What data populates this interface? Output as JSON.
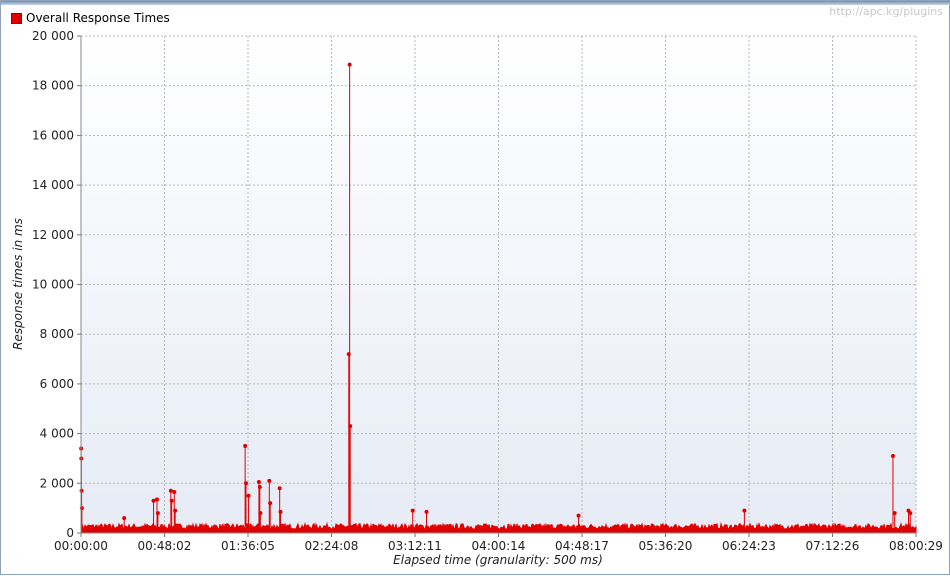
{
  "watermark": "http://apc.kg/plugins",
  "chart_data": {
    "type": "line",
    "legend": {
      "label": "Overall Response Times",
      "position": "top-left",
      "color": "#e00000"
    },
    "xlabel": "Elapsed time (granularity: 500 ms)",
    "ylabel": "Response times in ms",
    "ylim": [
      0,
      20000
    ],
    "yticks": [
      0,
      2000,
      4000,
      6000,
      8000,
      10000,
      12000,
      14000,
      16000,
      18000,
      20000
    ],
    "ytick_labels": [
      "0",
      "2 000",
      "4 000",
      "6 000",
      "8 000",
      "10 000",
      "12 000",
      "14 000",
      "16 000",
      "18 000",
      "20 000"
    ],
    "xlim_seconds": [
      0,
      29000
    ],
    "xtick_labels": [
      "00:00:00",
      "00:48:02",
      "01:36:05",
      "02:24:08",
      "03:12:11",
      "04:00:14",
      "04:48:17",
      "05:36:20",
      "06:24:23",
      "07:12:26",
      "08:00:29"
    ],
    "grid": true,
    "baseline_ms": 250,
    "series": [
      {
        "name": "Overall Response Times",
        "color": "#e00000",
        "spikes": [
          {
            "t": "00:00:05",
            "value": 3400
          },
          {
            "t": "00:00:10",
            "value": 3000
          },
          {
            "t": "00:00:20",
            "value": 1700
          },
          {
            "t": "00:00:30",
            "value": 1000
          },
          {
            "t": "00:25:00",
            "value": 600
          },
          {
            "t": "00:42:00",
            "value": 1300
          },
          {
            "t": "00:44:00",
            "value": 1350
          },
          {
            "t": "00:44:30",
            "value": 800
          },
          {
            "t": "00:52:00",
            "value": 1700
          },
          {
            "t": "00:52:30",
            "value": 1300
          },
          {
            "t": "00:54:00",
            "value": 1650
          },
          {
            "t": "00:54:30",
            "value": 900
          },
          {
            "t": "01:35:00",
            "value": 3500
          },
          {
            "t": "01:35:30",
            "value": 2000
          },
          {
            "t": "01:37:00",
            "value": 1500
          },
          {
            "t": "01:43:00",
            "value": 2050
          },
          {
            "t": "01:43:30",
            "value": 1850
          },
          {
            "t": "01:43:50",
            "value": 800
          },
          {
            "t": "01:49:00",
            "value": 2100
          },
          {
            "t": "01:49:30",
            "value": 1200
          },
          {
            "t": "01:55:00",
            "value": 1800
          },
          {
            "t": "01:55:30",
            "value": 850
          },
          {
            "t": "02:35:00",
            "value": 7200
          },
          {
            "t": "02:35:30",
            "value": 18850
          },
          {
            "t": "02:35:50",
            "value": 4300
          },
          {
            "t": "03:12:00",
            "value": 900
          },
          {
            "t": "03:20:00",
            "value": 850
          },
          {
            "t": "04:48:00",
            "value": 700
          },
          {
            "t": "06:24:00",
            "value": 900
          },
          {
            "t": "07:50:00",
            "value": 3100
          },
          {
            "t": "07:51:00",
            "value": 800
          },
          {
            "t": "07:59:00",
            "value": 900
          },
          {
            "t": "08:00:00",
            "value": 800
          }
        ]
      }
    ]
  }
}
